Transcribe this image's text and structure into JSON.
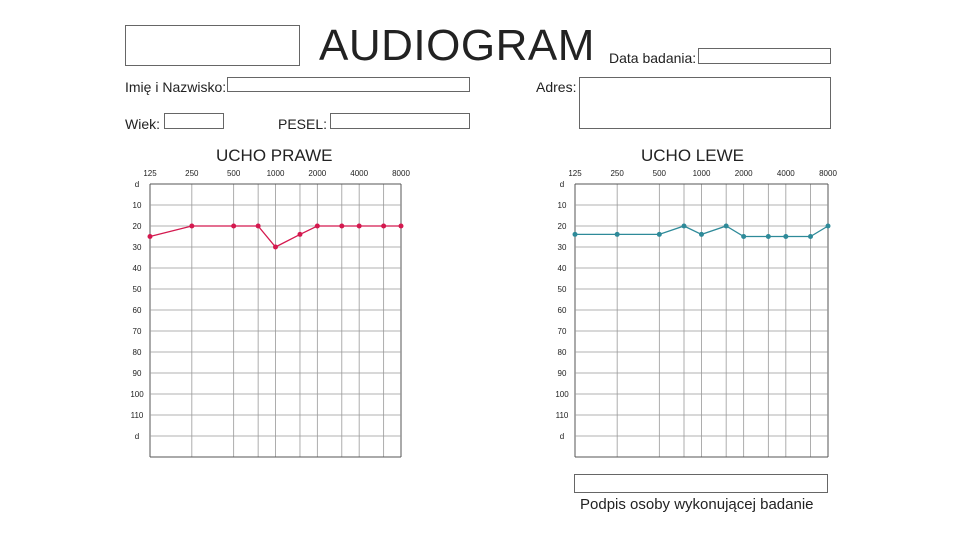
{
  "form": {
    "title": "AUDIOGRAM",
    "date_label": "Data badania:",
    "name_label": "Imię i Nazwisko:",
    "address_label": "Adres:",
    "age_label": "Wiek:",
    "pesel_label": "PESEL:",
    "signature_label": "Podpis osoby wykonującej badanie",
    "fields": {
      "top_left": "",
      "date": "",
      "name": "",
      "address": "",
      "age": "",
      "pesel": "",
      "signature": ""
    }
  },
  "chart_data": [
    {
      "type": "line",
      "title": "UCHO PRAWE",
      "x_tick_labels": [
        "125",
        "250",
        "500",
        "1000",
        "2000",
        "4000",
        "8000"
      ],
      "y_tick_labels": [
        "d",
        "10",
        "20",
        "30",
        "40",
        "50",
        "60",
        "70",
        "80",
        "90",
        "100",
        "110",
        "d"
      ],
      "x": [
        125,
        250,
        500,
        750,
        1000,
        1500,
        2000,
        3000,
        4000,
        6000,
        8000
      ],
      "ylim": [
        0,
        120
      ],
      "y_inverted": true,
      "x_scale": "log2",
      "grid": true,
      "series": [
        {
          "values": [
            15,
            10,
            10,
            10,
            20,
            14,
            10,
            10,
            10,
            10,
            10
          ],
          "color": "#d4194f"
        }
      ]
    },
    {
      "type": "line",
      "title": "UCHO LEWE",
      "x_tick_labels": [
        "125",
        "250",
        "500",
        "1000",
        "2000",
        "4000",
        "8000"
      ],
      "y_tick_labels": [
        "d",
        "10",
        "20",
        "30",
        "40",
        "50",
        "60",
        "70",
        "80",
        "90",
        "100",
        "110",
        "d"
      ],
      "x": [
        125,
        250,
        500,
        750,
        1000,
        1500,
        2000,
        3000,
        4000,
        6000,
        8000
      ],
      "ylim": [
        0,
        120
      ],
      "y_inverted": true,
      "x_scale": "log2",
      "grid": true,
      "series": [
        {
          "values": [
            14,
            14,
            14,
            10,
            14,
            10,
            15,
            15,
            15,
            15,
            10
          ],
          "color": "#2e8a99"
        }
      ]
    }
  ]
}
